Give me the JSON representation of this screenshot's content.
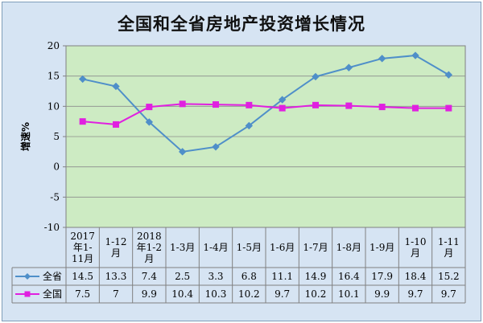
{
  "chart_data": {
    "type": "line",
    "title": "全国和全省房地产投资增长情况",
    "ylabel": "增速%",
    "ylim": [
      -10,
      20
    ],
    "yticks": [
      -10,
      -5,
      0,
      5,
      10,
      15,
      20
    ],
    "categories": [
      [
        "2017",
        "年1-",
        "11月"
      ],
      [
        "1-12",
        "月"
      ],
      [
        "2018",
        "年1-2",
        "月"
      ],
      [
        "1-3月"
      ],
      [
        "1-4月"
      ],
      [
        "1-5月"
      ],
      [
        "1-6月"
      ],
      [
        "1-7月"
      ],
      [
        "1-8月"
      ],
      [
        "1-9月"
      ],
      [
        "1-10",
        "月"
      ],
      [
        "1-11",
        "月"
      ]
    ],
    "series": [
      {
        "name": "全省",
        "color": "#4f8fc9",
        "marker": "diamond",
        "values": [
          14.5,
          13.3,
          7.4,
          2.5,
          3.3,
          6.8,
          11.1,
          14.9,
          16.4,
          17.9,
          18.4,
          15.2
        ],
        "labels": [
          "14.5",
          "13.3",
          "7.4",
          "2.5",
          "3.3",
          "6.8",
          "11.1",
          "14.9",
          "16.4",
          "17.9",
          "18.4",
          "15.2"
        ]
      },
      {
        "name": "全国",
        "color": "#e020e0",
        "marker": "square",
        "values": [
          7.5,
          7,
          9.9,
          10.4,
          10.3,
          10.2,
          9.7,
          10.2,
          10.1,
          9.9,
          9.7,
          9.7
        ],
        "labels": [
          "7.5",
          "7",
          "9.9",
          "10.4",
          "10.3",
          "10.2",
          "9.7",
          "10.2",
          "10.1",
          "9.9",
          "9.7",
          "9.7"
        ]
      }
    ],
    "plot_background": "#cdebc3",
    "grid": true,
    "data_table": true
  }
}
